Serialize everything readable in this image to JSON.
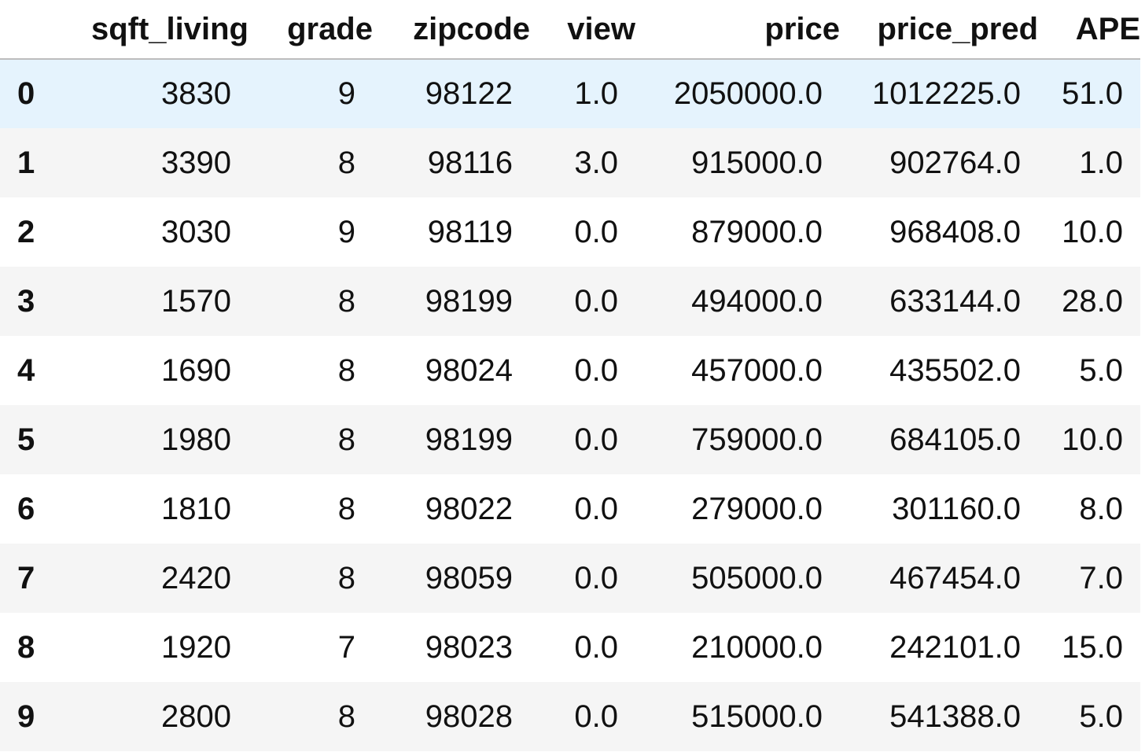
{
  "table": {
    "columns": [
      "sqft_living",
      "grade",
      "zipcode",
      "view",
      "price",
      "price_pred",
      "APE"
    ],
    "rows": [
      {
        "index": "0",
        "sqft_living": "3830",
        "grade": "9",
        "zipcode": "98122",
        "view": "1.0",
        "price": "2050000.0",
        "price_pred": "1012225.0",
        "APE": "51.0"
      },
      {
        "index": "1",
        "sqft_living": "3390",
        "grade": "8",
        "zipcode": "98116",
        "view": "3.0",
        "price": "915000.0",
        "price_pred": "902764.0",
        "APE": "1.0"
      },
      {
        "index": "2",
        "sqft_living": "3030",
        "grade": "9",
        "zipcode": "98119",
        "view": "0.0",
        "price": "879000.0",
        "price_pred": "968408.0",
        "APE": "10.0"
      },
      {
        "index": "3",
        "sqft_living": "1570",
        "grade": "8",
        "zipcode": "98199",
        "view": "0.0",
        "price": "494000.0",
        "price_pred": "633144.0",
        "APE": "28.0"
      },
      {
        "index": "4",
        "sqft_living": "1690",
        "grade": "8",
        "zipcode": "98024",
        "view": "0.0",
        "price": "457000.0",
        "price_pred": "435502.0",
        "APE": "5.0"
      },
      {
        "index": "5",
        "sqft_living": "1980",
        "grade": "8",
        "zipcode": "98199",
        "view": "0.0",
        "price": "759000.0",
        "price_pred": "684105.0",
        "APE": "10.0"
      },
      {
        "index": "6",
        "sqft_living": "1810",
        "grade": "8",
        "zipcode": "98022",
        "view": "0.0",
        "price": "279000.0",
        "price_pred": "301160.0",
        "APE": "8.0"
      },
      {
        "index": "7",
        "sqft_living": "2420",
        "grade": "8",
        "zipcode": "98059",
        "view": "0.0",
        "price": "505000.0",
        "price_pred": "467454.0",
        "APE": "7.0"
      },
      {
        "index": "8",
        "sqft_living": "1920",
        "grade": "7",
        "zipcode": "98023",
        "view": "0.0",
        "price": "210000.0",
        "price_pred": "242101.0",
        "APE": "15.0"
      },
      {
        "index": "9",
        "sqft_living": "2800",
        "grade": "8",
        "zipcode": "98028",
        "view": "0.0",
        "price": "515000.0",
        "price_pred": "541388.0",
        "APE": "5.0"
      }
    ]
  },
  "colors": {
    "hover_row": "#e5f3fd",
    "stripe_row": "#f5f5f5",
    "header_border": "#bdbdbd"
  }
}
